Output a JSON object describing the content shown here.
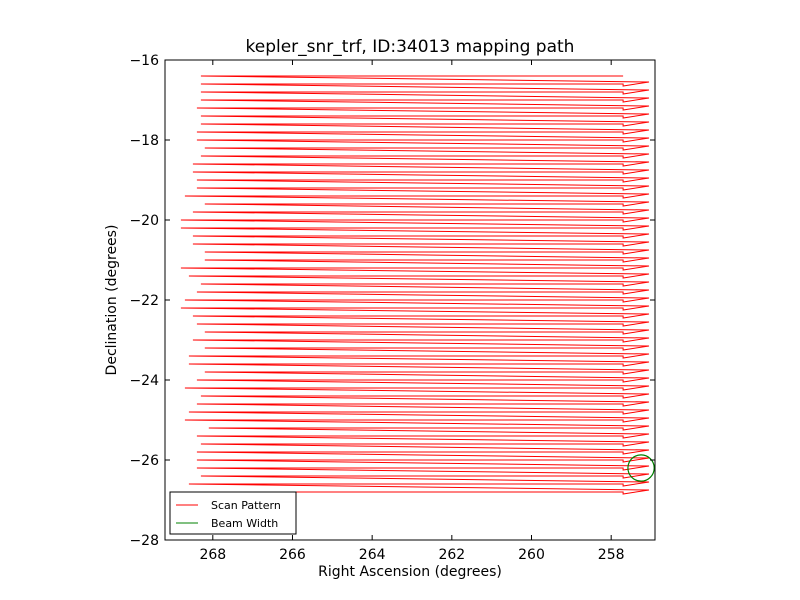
{
  "chart_data": {
    "type": "line",
    "title": "kepler_snr_trf, ID:34013 mapping path",
    "xlabel": "Right Ascension (degrees)",
    "ylabel": "Declination (degrees)",
    "xlim": [
      269.2,
      256.9
    ],
    "ylim": [
      -28,
      -16
    ],
    "x_ticks": [
      268,
      266,
      264,
      262,
      260,
      258
    ],
    "x_tick_labels": [
      "268",
      "266",
      "264",
      "262",
      "260",
      "258"
    ],
    "y_ticks": [
      -16,
      -18,
      -20,
      -22,
      -24,
      -26,
      -28
    ],
    "y_tick_labels": [
      "−16",
      "−18",
      "−20",
      "−22",
      "−24",
      "−26",
      "−28"
    ],
    "grid": false,
    "legend_position": "lower-left",
    "scan_pattern": {
      "name": "Scan Pattern",
      "color": "#ff0000",
      "dec_start": -16.4,
      "dec_step": -0.2,
      "n_rows": 53,
      "ra_west": 257.7,
      "ra_west_overshoot": 257.05,
      "ra_east_values": [
        268.3,
        268.3,
        268.3,
        268.3,
        268.4,
        268.3,
        268.3,
        268.4,
        268.4,
        268.2,
        268.3,
        268.5,
        268.5,
        268.4,
        268.4,
        268.7,
        268.2,
        268.5,
        268.8,
        268.8,
        268.5,
        268.5,
        268.2,
        268.2,
        268.8,
        268.6,
        268.3,
        268.4,
        268.7,
        268.8,
        268.5,
        268.4,
        268.2,
        268.5,
        268.2,
        268.6,
        268.6,
        268.2,
        268.4,
        268.7,
        268.3,
        268.4,
        268.6,
        268.7,
        268.1,
        268.4,
        268.3,
        268.4,
        268.4,
        268.4,
        268.3,
        268.6,
        268.3
      ]
    },
    "beam_width": {
      "name": "Beam Width",
      "color": "#008000",
      "center_ra": 257.25,
      "center_dec": -26.2,
      "radius_deg": 0.33
    }
  }
}
